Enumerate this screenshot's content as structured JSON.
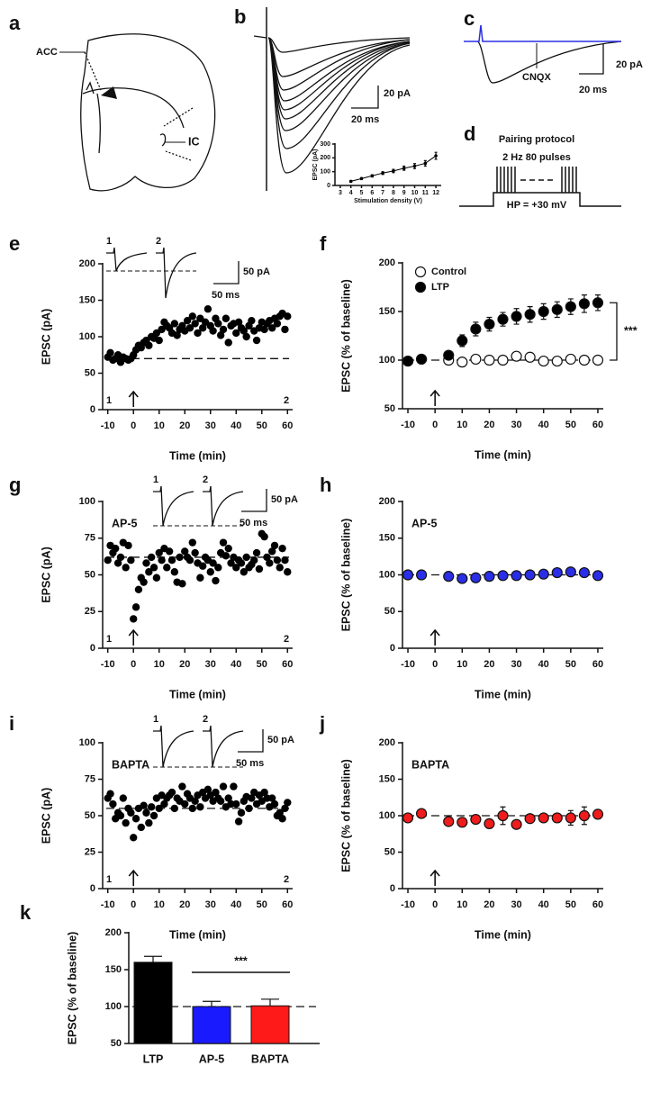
{
  "figure": {
    "panel_a": {
      "label": "a",
      "region_labels": [
        "ACC",
        "IC"
      ]
    },
    "panel_b": {
      "label": "b",
      "scale_y": "20 pA",
      "scale_x": "20 ms"
    },
    "panel_c": {
      "label": "c",
      "scale_y": "20 pA",
      "scale_x": "20 ms",
      "drug": "CNQX"
    },
    "panel_d": {
      "label": "d",
      "title": "Pairing protocol",
      "stimulus": "2 Hz 80 pulses",
      "holding": "HP = +30 mV"
    }
  },
  "chart_data": [
    {
      "type": "line",
      "xlabel": "Stimulation density (V)",
      "ylabel": "EPSC (pA)",
      "xlim": [
        2.5,
        12.5
      ],
      "ylim": [
        0,
        300
      ],
      "xticks": [
        3,
        4,
        5,
        6,
        7,
        8,
        9,
        10,
        11,
        12
      ],
      "yticks": [
        0,
        100,
        200,
        300
      ],
      "color": "#000000",
      "x": [
        4,
        5,
        6,
        7,
        8,
        9,
        10,
        11,
        12
      ],
      "values": [
        30,
        50,
        70,
        90,
        105,
        125,
        140,
        160,
        215
      ],
      "errors": [
        5,
        6,
        8,
        10,
        12,
        15,
        18,
        20,
        25
      ]
    },
    {
      "type": "scatter",
      "panel": "e",
      "xlabel": "Time (min)",
      "ylabel": "EPSC (pA)",
      "xlim": [
        -12,
        62
      ],
      "ylim": [
        0,
        200
      ],
      "xticks": [
        -10,
        0,
        10,
        20,
        30,
        40,
        50,
        60
      ],
      "yticks": [
        0,
        50,
        100,
        150,
        200
      ],
      "reference_line": 70,
      "color": "#000000",
      "markers": [
        "1",
        "2"
      ],
      "inset": {
        "labels": [
          "1",
          "2"
        ],
        "scale_y": "50 pA",
        "scale_x": "50 ms"
      },
      "x": [
        -10,
        -9,
        -8,
        -7,
        -6,
        -5,
        -4,
        -3,
        -2,
        -1,
        0,
        1,
        2,
        3,
        4,
        5,
        6,
        7,
        8,
        9,
        10,
        11,
        12,
        13,
        14,
        15,
        16,
        17,
        18,
        19,
        20,
        21,
        22,
        23,
        24,
        25,
        26,
        27,
        28,
        29,
        30,
        31,
        32,
        33,
        34,
        35,
        36,
        37,
        38,
        39,
        40,
        41,
        42,
        43,
        44,
        45,
        46,
        47,
        48,
        49,
        50,
        51,
        52,
        53,
        54,
        55,
        56,
        57,
        58,
        59,
        60
      ],
      "values": [
        72,
        78,
        68,
        70,
        75,
        65,
        72,
        70,
        68,
        70,
        75,
        82,
        88,
        85,
        92,
        95,
        88,
        100,
        98,
        105,
        95,
        110,
        120,
        115,
        112,
        105,
        118,
        102,
        110,
        115,
        108,
        122,
        112,
        128,
        118,
        105,
        125,
        112,
        120,
        138,
        115,
        108,
        125,
        118,
        102,
        110,
        125,
        92,
        115,
        118,
        105,
        120,
        112,
        108,
        100,
        115,
        122,
        108,
        95,
        112,
        120,
        110,
        118,
        122,
        112,
        125,
        118,
        128,
        132,
        110,
        128
      ]
    },
    {
      "type": "errorbar",
      "panel": "f",
      "xlabel": "Time (min)",
      "ylabel": "EPSC (% of baseline)",
      "xlim": [
        -12,
        62
      ],
      "ylim": [
        50,
        200
      ],
      "xticks": [
        -10,
        0,
        10,
        20,
        30,
        40,
        50,
        60
      ],
      "yticks": [
        50,
        100,
        150,
        200
      ],
      "reference_line": 100,
      "legend": "upper left",
      "annotation": "***",
      "x": [
        -10,
        -5,
        5,
        10,
        15,
        20,
        25,
        30,
        35,
        40,
        45,
        50,
        55,
        60
      ],
      "series": [
        {
          "name": "Control",
          "color": "#ffffff",
          "values": [
            99,
            101,
            100,
            98,
            101,
            100,
            100,
            104,
            103,
            99,
            99,
            101,
            100,
            100
          ],
          "errors": [
            2,
            2,
            2,
            2,
            2,
            2,
            2,
            3,
            3,
            2,
            2,
            2,
            2,
            2
          ]
        },
        {
          "name": "LTP",
          "color": "#000000",
          "values": [
            99,
            101,
            105,
            120,
            132,
            137,
            142,
            145,
            147,
            150,
            152,
            155,
            158,
            159
          ],
          "errors": [
            2,
            2,
            4,
            6,
            7,
            7,
            7,
            8,
            8,
            8,
            8,
            8,
            9,
            8
          ]
        }
      ]
    },
    {
      "type": "scatter",
      "panel": "g",
      "title": "AP-5",
      "xlabel": "Time (min)",
      "ylabel": "EPSC (pA)",
      "xlim": [
        -12,
        62
      ],
      "ylim": [
        0,
        100
      ],
      "xticks": [
        -10,
        0,
        10,
        20,
        30,
        40,
        50,
        60
      ],
      "yticks": [
        0,
        25,
        50,
        75,
        100
      ],
      "reference_line": 62,
      "color": "#000000",
      "markers": [
        "1",
        "2"
      ],
      "inset": {
        "labels": [
          "1",
          "2"
        ],
        "scale_y": "50 pA",
        "scale_x": "50 ms"
      },
      "x": [
        -10,
        -9,
        -8,
        -7,
        -6,
        -5,
        -4,
        -3,
        -2,
        -1,
        0,
        1,
        2,
        3,
        4,
        5,
        6,
        7,
        8,
        9,
        10,
        11,
        12,
        13,
        14,
        15,
        16,
        17,
        18,
        19,
        20,
        21,
        22,
        23,
        24,
        25,
        26,
        27,
        28,
        29,
        30,
        31,
        32,
        33,
        34,
        35,
        36,
        37,
        38,
        39,
        40,
        41,
        42,
        43,
        44,
        45,
        46,
        47,
        48,
        49,
        50,
        51,
        52,
        53,
        54,
        55,
        56,
        57,
        58,
        59,
        60
      ],
      "values": [
        60,
        70,
        65,
        68,
        58,
        62,
        72,
        55,
        70,
        60,
        20,
        28,
        40,
        48,
        45,
        58,
        52,
        62,
        55,
        48,
        65,
        60,
        68,
        55,
        66,
        60,
        52,
        45,
        62,
        44,
        66,
        62,
        60,
        72,
        65,
        58,
        48,
        56,
        62,
        60,
        52,
        58,
        46,
        55,
        65,
        72,
        63,
        68,
        58,
        62,
        55,
        60,
        58,
        52,
        62,
        55,
        57,
        60,
        65,
        54,
        78,
        76,
        62,
        58,
        66,
        70,
        60,
        55,
        68,
        60,
        52
      ]
    },
    {
      "type": "errorbar",
      "panel": "h",
      "title": "AP-5",
      "xlabel": "Time (min)",
      "ylabel": "EPSC (% of baseline)",
      "xlim": [
        -12,
        62
      ],
      "ylim": [
        0,
        200
      ],
      "xticks": [
        -10,
        0,
        10,
        20,
        30,
        40,
        50,
        60
      ],
      "yticks": [
        0,
        50,
        100,
        150,
        200
      ],
      "reference_line": 100,
      "x": [
        -10,
        -5,
        5,
        10,
        15,
        20,
        25,
        30,
        35,
        40,
        45,
        50,
        55,
        60
      ],
      "series": [
        {
          "color": "#2a2ee6",
          "values": [
            100,
            100,
            98,
            95,
            96,
            98,
            99,
            99,
            100,
            101,
            103,
            104,
            103,
            99
          ],
          "errors": [
            3,
            3,
            3,
            4,
            4,
            4,
            4,
            4,
            4,
            5,
            4,
            4,
            4,
            6
          ]
        }
      ]
    },
    {
      "type": "scatter",
      "panel": "i",
      "title": "BAPTA",
      "xlabel": "Time (min)",
      "ylabel": "EPSC (pA)",
      "xlim": [
        -12,
        62
      ],
      "ylim": [
        0,
        100
      ],
      "xticks": [
        -10,
        0,
        10,
        20,
        30,
        40,
        50,
        60
      ],
      "yticks": [
        0,
        25,
        50,
        75,
        100
      ],
      "reference_line": 55,
      "color": "#000000",
      "markers": [
        "1",
        "2"
      ],
      "inset": {
        "labels": [
          "1",
          "2"
        ],
        "scale_y": "50 pA",
        "scale_x": "50 ms"
      },
      "x": [
        -10,
        -9,
        -8,
        -7,
        -6,
        -5,
        -4,
        -3,
        -2,
        -1,
        0,
        1,
        2,
        3,
        4,
        5,
        6,
        7,
        8,
        9,
        10,
        11,
        12,
        13,
        14,
        15,
        16,
        17,
        18,
        19,
        20,
        21,
        22,
        23,
        24,
        25,
        26,
        27,
        28,
        29,
        30,
        31,
        32,
        33,
        34,
        35,
        36,
        37,
        38,
        39,
        40,
        41,
        42,
        43,
        44,
        45,
        46,
        47,
        48,
        49,
        50,
        51,
        52,
        53,
        54,
        55,
        56,
        57,
        58,
        59,
        60
      ],
      "values": [
        62,
        65,
        58,
        48,
        52,
        50,
        62,
        45,
        55,
        52,
        35,
        48,
        55,
        42,
        57,
        52,
        45,
        56,
        50,
        62,
        55,
        64,
        58,
        62,
        64,
        66,
        55,
        62,
        60,
        70,
        58,
        65,
        62,
        55,
        60,
        64,
        56,
        66,
        62,
        68,
        64,
        60,
        66,
        62,
        60,
        70,
        56,
        62,
        58,
        70,
        58,
        46,
        52,
        60,
        63,
        55,
        62,
        66,
        58,
        64,
        60,
        66,
        62,
        56,
        62,
        58,
        50,
        52,
        48,
        55,
        59
      ]
    },
    {
      "type": "errorbar",
      "panel": "j",
      "title": "BAPTA",
      "xlabel": "Time (min)",
      "ylabel": "EPSC (% of baseline)",
      "xlim": [
        -12,
        62
      ],
      "ylim": [
        0,
        200
      ],
      "xticks": [
        -10,
        0,
        10,
        20,
        30,
        40,
        50,
        60
      ],
      "yticks": [
        0,
        50,
        100,
        150,
        200
      ],
      "reference_line": 100,
      "x": [
        -10,
        -5,
        5,
        10,
        15,
        20,
        25,
        30,
        35,
        40,
        45,
        50,
        55,
        60
      ],
      "series": [
        {
          "color": "#ee1c1c",
          "values": [
            97,
            103,
            92,
            91,
            95,
            89,
            100,
            88,
            96,
            97,
            97,
            97,
            100,
            102
          ],
          "errors": [
            3,
            3,
            4,
            5,
            5,
            5,
            12,
            5,
            4,
            4,
            6,
            10,
            12,
            6
          ]
        }
      ]
    },
    {
      "type": "bar",
      "panel": "k",
      "ylabel": "EPSC (% of baseline)",
      "ylim": [
        50,
        200
      ],
      "yticks": [
        50,
        100,
        150,
        200
      ],
      "reference_line": 100,
      "annotation": "***",
      "categories": [
        "LTP",
        "AP-5",
        "BAPTA"
      ],
      "values": [
        160,
        100,
        101
      ],
      "errors": [
        8,
        7,
        9
      ],
      "colors": [
        "#000000",
        "#1a1aff",
        "#ff1a1a"
      ]
    }
  ]
}
